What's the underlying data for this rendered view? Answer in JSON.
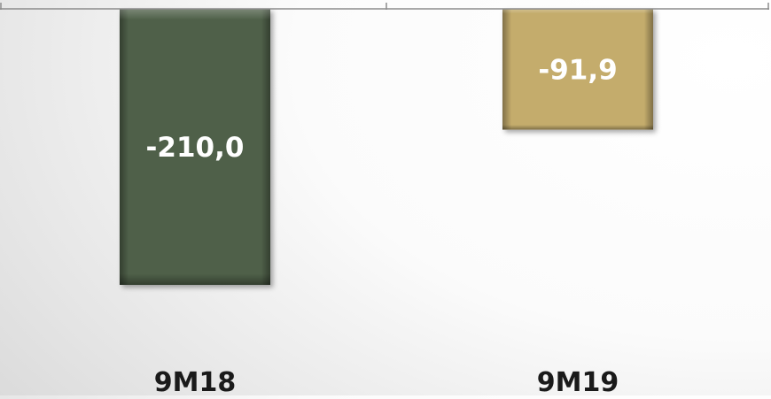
{
  "chart_data": {
    "type": "bar",
    "categories": [
      "9M18",
      "9M19"
    ],
    "values": [
      -210.0,
      -91.9
    ],
    "value_labels": [
      "-210,0",
      "-91,9"
    ],
    "title": "",
    "xlabel": "",
    "ylabel": "",
    "ylim": [
      -210.0,
      0
    ],
    "grid": false,
    "legend": "none",
    "colors": {
      "9M18": "#4f614a",
      "9M19": "#c4ac6c",
      "axis": "#8c8c8c"
    }
  }
}
